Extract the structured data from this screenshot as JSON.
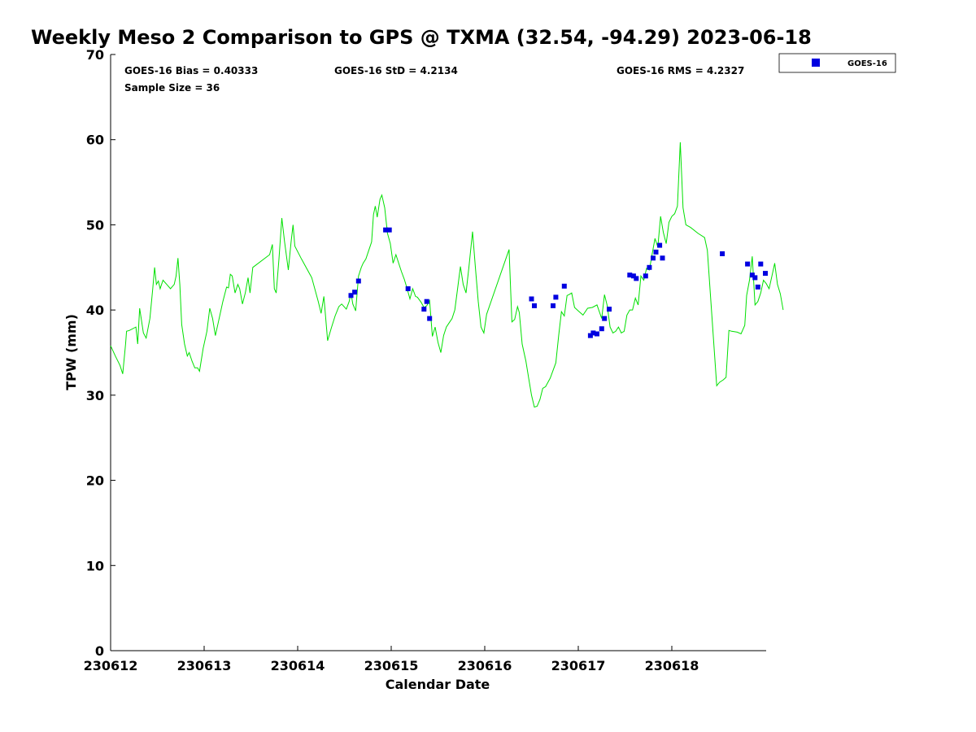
{
  "chart_data": {
    "type": "scatter",
    "title": "Weekly Meso 2 Comparison to GPS @ TXMA (32.54, -94.29) 2023-06-18",
    "xlabel": "Calendar Date",
    "ylabel": "TPW (mm)",
    "xlim": [
      0,
      7
    ],
    "ylim": [
      0,
      70
    ],
    "x_ticks": [
      {
        "value": 0,
        "label": "230612"
      },
      {
        "value": 1,
        "label": "230613"
      },
      {
        "value": 2,
        "label": "230614"
      },
      {
        "value": 3,
        "label": "230615"
      },
      {
        "value": 4,
        "label": "230616"
      },
      {
        "value": 5,
        "label": "230617"
      },
      {
        "value": 6,
        "label": "230618"
      }
    ],
    "y_ticks": [
      0,
      10,
      20,
      30,
      40,
      50,
      60,
      70
    ],
    "grid": false,
    "stats": {
      "bias": "GOES-16 Bias = 0.40333",
      "std": "GOES-16 StD = 4.2134",
      "rms": "GOES-16 RMS = 4.2327",
      "sample": "Sample Size = 36"
    },
    "legend": {
      "position": "top-right",
      "entries": [
        {
          "label": "GOES-16",
          "color": "#0000e0",
          "marker": "square"
        }
      ]
    },
    "series": [
      {
        "kind": "line",
        "color": "#00e000",
        "points": [
          [
            0.0,
            35.8
          ],
          [
            0.05,
            34.6
          ],
          [
            0.1,
            33.5
          ],
          [
            0.13,
            32.5
          ],
          [
            0.16,
            36.0
          ],
          [
            0.17,
            37.5
          ],
          [
            0.2,
            37.6
          ],
          [
            0.27,
            38.0
          ],
          [
            0.29,
            36.0
          ],
          [
            0.31,
            40.2
          ],
          [
            0.35,
            37.3
          ],
          [
            0.38,
            36.7
          ],
          [
            0.42,
            39.0
          ],
          [
            0.45,
            42.5
          ],
          [
            0.47,
            45.0
          ],
          [
            0.49,
            43.0
          ],
          [
            0.51,
            43.4
          ],
          [
            0.53,
            42.5
          ],
          [
            0.56,
            43.5
          ],
          [
            0.6,
            43.0
          ],
          [
            0.64,
            42.5
          ],
          [
            0.68,
            43.0
          ],
          [
            0.7,
            44.0
          ],
          [
            0.72,
            46.1
          ],
          [
            0.74,
            43.0
          ],
          [
            0.76,
            38.3
          ],
          [
            0.79,
            36.0
          ],
          [
            0.82,
            34.6
          ],
          [
            0.84,
            35.0
          ],
          [
            0.87,
            34.0
          ],
          [
            0.9,
            33.2
          ],
          [
            0.93,
            33.2
          ],
          [
            0.95,
            32.8
          ],
          [
            0.99,
            35.5
          ],
          [
            1.03,
            37.5
          ],
          [
            1.06,
            40.2
          ],
          [
            1.09,
            39.0
          ],
          [
            1.12,
            37.0
          ],
          [
            1.15,
            38.5
          ],
          [
            1.2,
            41.0
          ],
          [
            1.24,
            42.7
          ],
          [
            1.26,
            42.6
          ],
          [
            1.28,
            44.2
          ],
          [
            1.3,
            44.0
          ],
          [
            1.33,
            42.0
          ],
          [
            1.36,
            43.0
          ],
          [
            1.38,
            42.5
          ],
          [
            1.41,
            40.7
          ],
          [
            1.44,
            42.0
          ],
          [
            1.47,
            43.8
          ],
          [
            1.49,
            42.0
          ],
          [
            1.52,
            45.0
          ],
          [
            1.7,
            46.5
          ],
          [
            1.73,
            47.7
          ],
          [
            1.75,
            42.5
          ],
          [
            1.77,
            42.0
          ],
          [
            1.8,
            46.0
          ],
          [
            1.83,
            50.8
          ],
          [
            1.86,
            48.0
          ],
          [
            1.9,
            44.7
          ],
          [
            1.93,
            48.0
          ],
          [
            1.95,
            50.0
          ],
          [
            1.97,
            47.5
          ],
          [
            2.04,
            46.0
          ],
          [
            2.15,
            43.8
          ],
          [
            2.22,
            41.0
          ],
          [
            2.25,
            39.6
          ],
          [
            2.28,
            41.6
          ],
          [
            2.32,
            36.4
          ],
          [
            2.36,
            37.9
          ],
          [
            2.4,
            39.3
          ],
          [
            2.44,
            40.4
          ],
          [
            2.47,
            40.7
          ],
          [
            2.52,
            40.1
          ],
          [
            2.55,
            41.0
          ],
          [
            2.57,
            42.0
          ],
          [
            2.59,
            40.7
          ],
          [
            2.62,
            39.9
          ],
          [
            2.65,
            44.0
          ],
          [
            2.68,
            45.0
          ],
          [
            2.7,
            45.5
          ],
          [
            2.73,
            46.0
          ],
          [
            2.76,
            47.0
          ],
          [
            2.79,
            48.0
          ],
          [
            2.81,
            51.2
          ],
          [
            2.83,
            52.2
          ],
          [
            2.85,
            50.9
          ],
          [
            2.88,
            53.0
          ],
          [
            2.9,
            53.5
          ],
          [
            2.93,
            52.0
          ],
          [
            2.96,
            49.0
          ],
          [
            2.99,
            47.8
          ],
          [
            3.02,
            45.5
          ],
          [
            3.05,
            46.5
          ],
          [
            3.08,
            45.5
          ],
          [
            3.11,
            44.5
          ],
          [
            3.14,
            43.6
          ],
          [
            3.17,
            42.5
          ],
          [
            3.2,
            41.3
          ],
          [
            3.23,
            42.5
          ],
          [
            3.26,
            41.6
          ],
          [
            3.28,
            41.5
          ],
          [
            3.32,
            40.9
          ],
          [
            3.35,
            40.3
          ],
          [
            3.38,
            40.5
          ],
          [
            3.41,
            41.1
          ],
          [
            3.44,
            36.9
          ],
          [
            3.47,
            38.0
          ],
          [
            3.5,
            36.2
          ],
          [
            3.53,
            35.0
          ],
          [
            3.56,
            37.0
          ],
          [
            3.59,
            38.0
          ],
          [
            3.62,
            38.5
          ],
          [
            3.65,
            39.0
          ],
          [
            3.68,
            40.0
          ],
          [
            3.71,
            42.5
          ],
          [
            3.74,
            45.1
          ],
          [
            3.77,
            43.0
          ],
          [
            3.8,
            42.0
          ],
          [
            3.83,
            45.0
          ],
          [
            3.87,
            49.2
          ],
          [
            3.9,
            45.0
          ],
          [
            3.93,
            41.0
          ],
          [
            3.96,
            38.0
          ],
          [
            3.99,
            37.3
          ],
          [
            4.02,
            39.5
          ],
          [
            4.26,
            47.1
          ],
          [
            4.29,
            38.6
          ],
          [
            4.32,
            38.9
          ],
          [
            4.35,
            40.4
          ],
          [
            4.37,
            39.7
          ],
          [
            4.4,
            36.0
          ],
          [
            4.44,
            34.0
          ],
          [
            4.47,
            32.0
          ],
          [
            4.5,
            30.0
          ],
          [
            4.53,
            28.6
          ],
          [
            4.56,
            28.7
          ],
          [
            4.59,
            29.5
          ],
          [
            4.62,
            30.8
          ],
          [
            4.65,
            31.0
          ],
          [
            4.7,
            32.0
          ],
          [
            4.76,
            33.8
          ],
          [
            4.79,
            37.0
          ],
          [
            4.82,
            39.8
          ],
          [
            4.85,
            39.3
          ],
          [
            4.88,
            41.7
          ],
          [
            4.9,
            41.8
          ],
          [
            4.93,
            42.0
          ],
          [
            4.96,
            40.3
          ],
          [
            5.0,
            39.9
          ],
          [
            5.05,
            39.4
          ],
          [
            5.1,
            40.2
          ],
          [
            5.15,
            40.3
          ],
          [
            5.2,
            40.6
          ],
          [
            5.25,
            39.0
          ],
          [
            5.28,
            41.8
          ],
          [
            5.31,
            40.5
          ],
          [
            5.34,
            38.0
          ],
          [
            5.37,
            37.3
          ],
          [
            5.4,
            37.5
          ],
          [
            5.43,
            38.0
          ],
          [
            5.46,
            37.3
          ],
          [
            5.49,
            37.5
          ],
          [
            5.52,
            39.4
          ],
          [
            5.55,
            40.0
          ],
          [
            5.58,
            40.0
          ],
          [
            5.61,
            41.4
          ],
          [
            5.64,
            40.6
          ],
          [
            5.67,
            44.0
          ],
          [
            5.7,
            43.5
          ],
          [
            5.73,
            44.9
          ],
          [
            5.76,
            44.7
          ],
          [
            5.79,
            46.6
          ],
          [
            5.82,
            48.4
          ],
          [
            5.85,
            47.4
          ],
          [
            5.88,
            51.0
          ],
          [
            5.91,
            49.1
          ],
          [
            5.94,
            47.8
          ],
          [
            5.97,
            50.3
          ],
          [
            6.0,
            51.0
          ],
          [
            6.03,
            51.3
          ],
          [
            6.06,
            52.2
          ],
          [
            6.09,
            59.7
          ],
          [
            6.12,
            52.0
          ],
          [
            6.15,
            50.0
          ],
          [
            6.2,
            49.7
          ],
          [
            6.28,
            49.0
          ],
          [
            6.35,
            48.5
          ],
          [
            6.38,
            47.0
          ],
          [
            6.48,
            31.1
          ],
          [
            6.51,
            31.5
          ],
          [
            6.55,
            31.8
          ],
          [
            6.58,
            32.1
          ],
          [
            6.61,
            37.6
          ],
          [
            6.64,
            37.5
          ],
          [
            6.7,
            37.4
          ],
          [
            6.74,
            37.2
          ],
          [
            6.78,
            38.2
          ],
          [
            6.8,
            41.7
          ],
          [
            6.83,
            43.5
          ],
          [
            6.86,
            46.3
          ],
          [
            6.89,
            40.6
          ],
          [
            6.92,
            41.0
          ],
          [
            6.95,
            42.0
          ],
          [
            6.98,
            43.5
          ],
          [
            7.01,
            43.1
          ],
          [
            7.04,
            42.5
          ],
          [
            7.07,
            44.0
          ],
          [
            7.1,
            45.5
          ],
          [
            7.13,
            43.0
          ],
          [
            7.16,
            41.9
          ],
          [
            7.19,
            40.0
          ]
        ]
      },
      {
        "kind": "scatter",
        "name": "GOES-16",
        "color": "#0000e0",
        "points": [
          [
            2.57,
            41.7
          ],
          [
            2.61,
            42.1
          ],
          [
            2.65,
            43.4
          ],
          [
            2.94,
            49.4
          ],
          [
            2.98,
            49.4
          ],
          [
            3.18,
            42.5
          ],
          [
            3.35,
            40.1
          ],
          [
            3.38,
            41.0
          ],
          [
            3.41,
            39.0
          ],
          [
            4.5,
            41.3
          ],
          [
            4.53,
            40.5
          ],
          [
            4.73,
            40.5
          ],
          [
            4.76,
            41.5
          ],
          [
            4.85,
            42.8
          ],
          [
            5.13,
            37.0
          ],
          [
            5.16,
            37.3
          ],
          [
            5.2,
            37.2
          ],
          [
            5.25,
            37.8
          ],
          [
            5.28,
            39.0
          ],
          [
            5.33,
            40.1
          ],
          [
            5.55,
            44.1
          ],
          [
            5.59,
            44.0
          ],
          [
            5.62,
            43.7
          ],
          [
            5.72,
            44.0
          ],
          [
            5.76,
            45.0
          ],
          [
            5.8,
            46.1
          ],
          [
            5.83,
            46.8
          ],
          [
            5.87,
            47.6
          ],
          [
            5.9,
            46.1
          ],
          [
            6.54,
            46.6
          ],
          [
            6.81,
            45.4
          ],
          [
            6.86,
            44.1
          ],
          [
            6.89,
            43.8
          ],
          [
            6.92,
            42.7
          ],
          [
            6.95,
            45.4
          ],
          [
            7.0,
            44.3
          ]
        ]
      }
    ]
  }
}
